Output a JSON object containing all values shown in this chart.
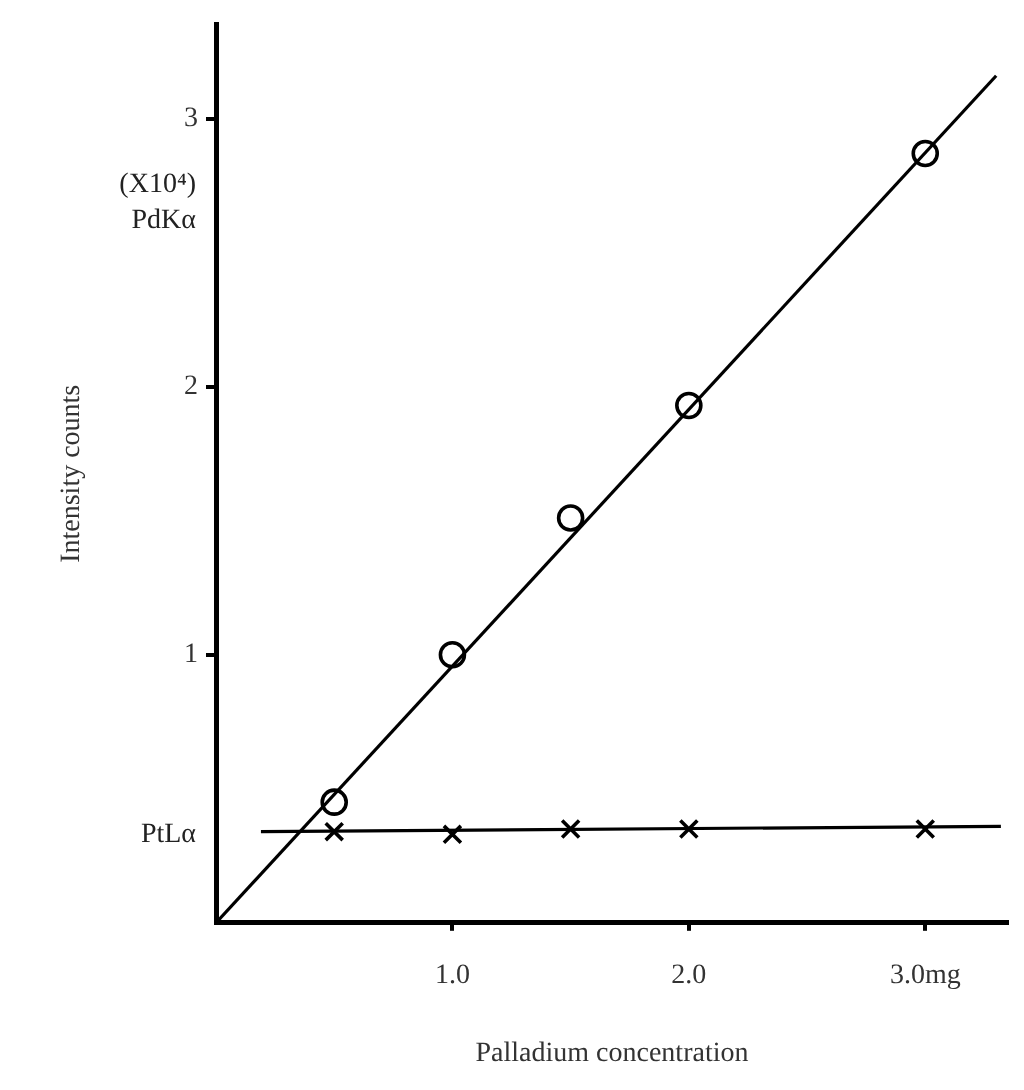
{
  "chart_data": {
    "type": "scatter",
    "xlabel": "Palladium concentration",
    "ylabel": "Intensity counts",
    "xlim": [
      0,
      3.35
    ],
    "ylim": [
      0,
      3.35
    ],
    "xticks": [
      {
        "value": 1,
        "label": "1.0"
      },
      {
        "value": 2,
        "label": "2.0"
      },
      {
        "value": 3,
        "label": "3.0mg"
      }
    ],
    "yticks": [
      1,
      2,
      3
    ],
    "grid": false,
    "legend": false,
    "annotations": [
      "(X10⁴)",
      "PdKα",
      "PtLα"
    ],
    "series": [
      {
        "marker": "circle",
        "color": "#000000",
        "x": [
          0.5,
          1.0,
          1.5,
          2.0,
          3.0
        ],
        "values": [
          0.45,
          1.0,
          1.51,
          1.93,
          2.87
        ]
      },
      {
        "marker": "cross",
        "color": "#000000",
        "x": [
          0.5,
          1.0,
          1.5,
          2.0,
          3.0
        ],
        "values": [
          0.34,
          0.33,
          0.35,
          0.35,
          0.35
        ]
      },
      {
        "type": "line",
        "marker": "none",
        "color": "#000000",
        "x": [
          0,
          3.3
        ],
        "values": [
          0,
          3.16
        ]
      },
      {
        "type": "line",
        "marker": "none",
        "color": "#000000",
        "x": [
          0.19,
          3.32
        ],
        "values": [
          0.34,
          0.36
        ]
      }
    ]
  }
}
